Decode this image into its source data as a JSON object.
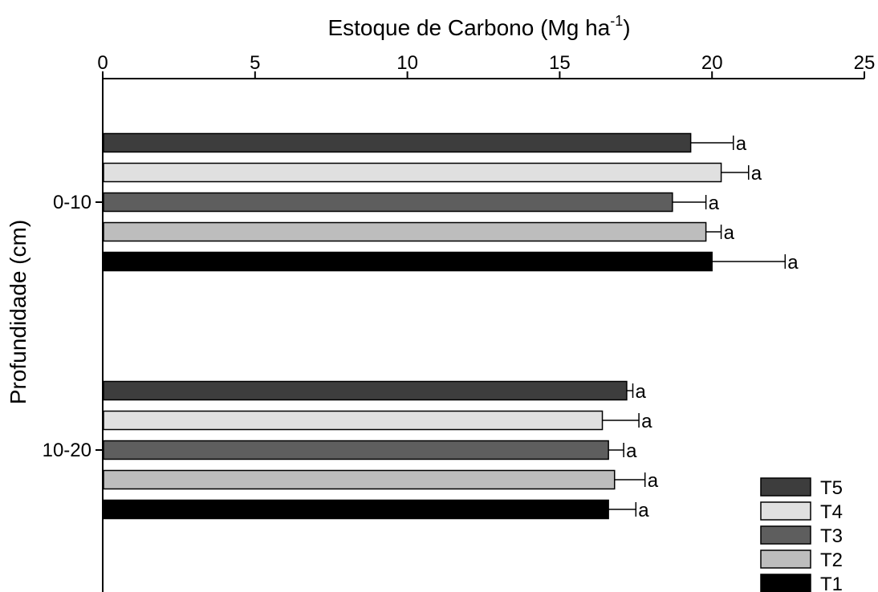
{
  "chart_data": {
    "type": "bar",
    "orientation": "horizontal",
    "xlabel": "Estoque de Carbono (Mg ha",
    "xlabel_sup": "-1",
    "xlabel_end": ")",
    "ylabel": "Profundidade (cm)",
    "xlim": [
      0,
      25
    ],
    "x_ticks": [
      0,
      5,
      10,
      15,
      20,
      25
    ],
    "categories": [
      "0-10",
      "10-20"
    ],
    "series": [
      {
        "name": "T5",
        "color": "#3d3d3d",
        "values": [
          19.3,
          17.2
        ],
        "errors": [
          1.4,
          0.2
        ],
        "labels": [
          "a",
          "a"
        ]
      },
      {
        "name": "T4",
        "color": "#e0e0e0",
        "values": [
          20.3,
          16.4
        ],
        "errors": [
          0.9,
          1.2
        ],
        "labels": [
          "a",
          "a"
        ]
      },
      {
        "name": "T3",
        "color": "#5e5e5e",
        "values": [
          18.7,
          16.6
        ],
        "errors": [
          1.1,
          0.5
        ],
        "labels": [
          "a",
          "a"
        ]
      },
      {
        "name": "T2",
        "color": "#bdbdbd",
        "values": [
          19.8,
          16.8
        ],
        "errors": [
          0.5,
          1.0
        ],
        "labels": [
          "a",
          "a"
        ]
      },
      {
        "name": "T1",
        "color": "#000000",
        "values": [
          20.0,
          16.6
        ],
        "errors": [
          2.4,
          0.9
        ],
        "labels": [
          "a",
          "a"
        ]
      }
    ],
    "grid": false,
    "legend_position": "bottom-right",
    "x_axis_position": "top"
  }
}
